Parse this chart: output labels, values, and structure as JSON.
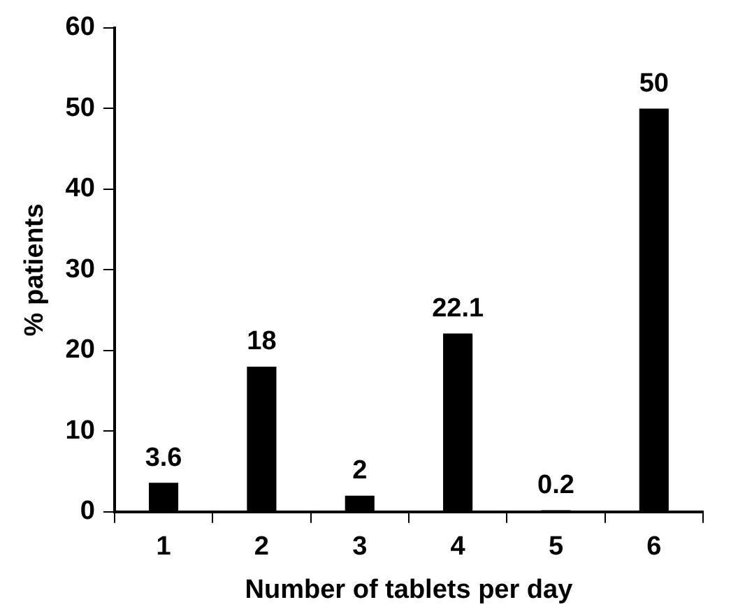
{
  "chart_data": {
    "type": "bar",
    "xlabel": "Number of tablets per day",
    "ylabel": "% patients",
    "categories": [
      "1",
      "2",
      "3",
      "4",
      "5",
      "6"
    ],
    "values": [
      3.6,
      18,
      2,
      22.1,
      0.2,
      50
    ],
    "color": "#000000",
    "ylim": [
      0,
      60
    ],
    "yticks": [
      0,
      10,
      20,
      30,
      40,
      50,
      60
    ],
    "grid": false,
    "legend": false,
    "data_labels": true
  }
}
